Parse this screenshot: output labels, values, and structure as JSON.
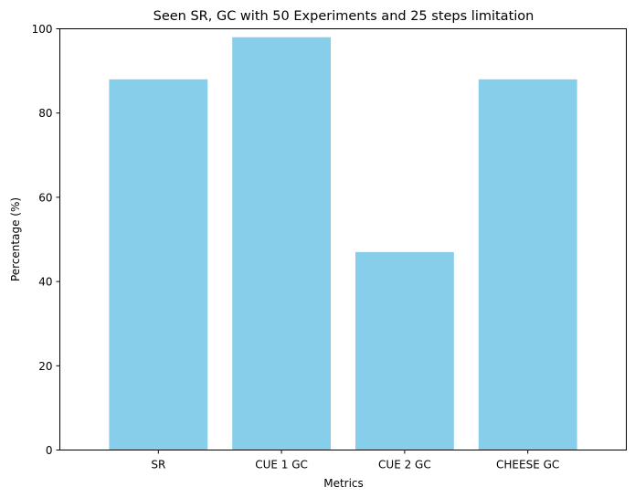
{
  "chart_data": {
    "type": "bar",
    "title": "Seen SR, GC with 50 Experiments and 25 steps limitation",
    "xlabel": "Metrics",
    "ylabel": "Percentage (%)",
    "categories": [
      "SR",
      "CUE 1 GC",
      "CUE 2 GC",
      "CHEESE GC"
    ],
    "values": [
      88,
      98,
      47,
      88
    ],
    "ylim": [
      0,
      100
    ],
    "yticks": [
      "0",
      "20",
      "40",
      "60",
      "80",
      "100"
    ],
    "grid": false,
    "legend": "none",
    "bar_color": "#87CEEB"
  }
}
